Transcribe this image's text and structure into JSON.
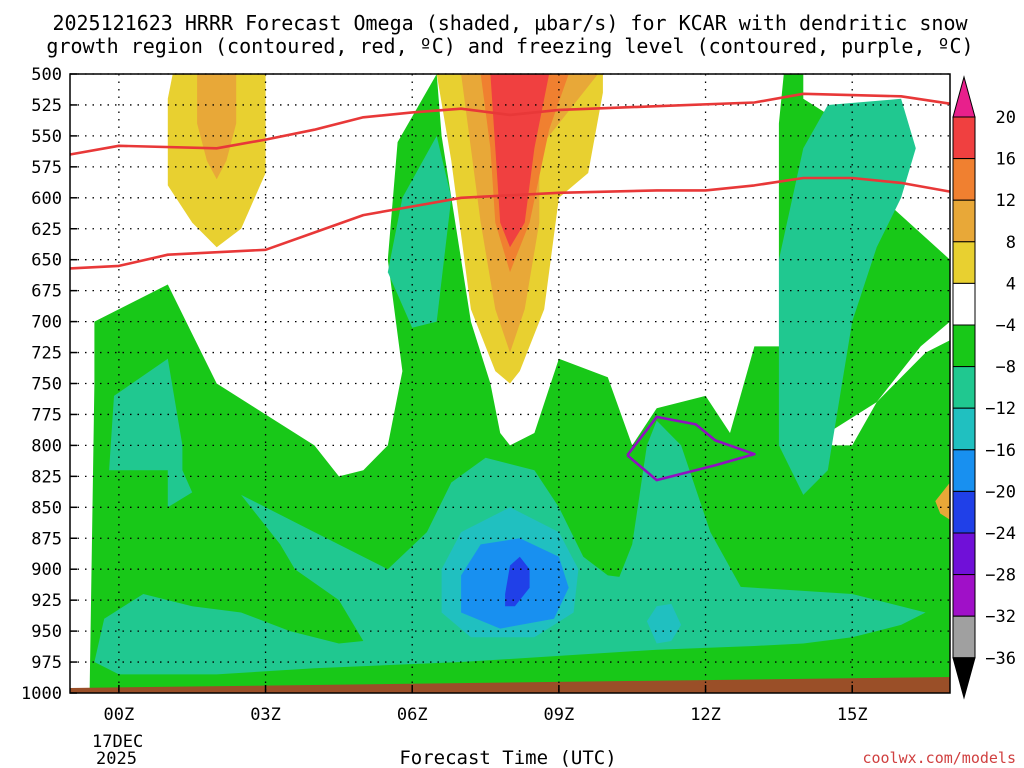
{
  "chart_data": {
    "type": "heatmap",
    "title_line1": "2025121623 HRRR Forecast Omega (shaded, μbar/s) for KCAR with dendritic snow",
    "title_line2": "growth region (contoured, red, ºC) and freezing level (contoured, purple, ºC)",
    "xlabel": "Forecast Time (UTC)",
    "ylabel": "",
    "credit": "coolwx.com/models",
    "x_ticks": [
      "00Z",
      "03Z",
      "06Z",
      "09Z",
      "12Z",
      "15Z"
    ],
    "x_tick_hours": [
      0,
      3,
      6,
      9,
      12,
      15
    ],
    "x_date_line1": "17DEC",
    "x_date_line2": "2025",
    "x_range_hours": [
      -1,
      17
    ],
    "y_ticks": [
      500,
      525,
      550,
      575,
      600,
      625,
      650,
      675,
      700,
      725,
      750,
      775,
      800,
      825,
      850,
      875,
      900,
      925,
      950,
      975,
      1000
    ],
    "y_range_hPa": [
      500,
      1000
    ],
    "colorbar": {
      "labels": [
        "20",
        "16",
        "12",
        "8",
        "4",
        "−4",
        "−8",
        "−12",
        "−16",
        "−20",
        "−24",
        "−28",
        "−32",
        "−36"
      ],
      "levels": [
        20,
        16,
        12,
        8,
        4,
        -4,
        -8,
        -12,
        -16,
        -20,
        -24,
        -28,
        -32,
        -36
      ],
      "colors": [
        "#f04040",
        "#f08030",
        "#e8a838",
        "#e8d030",
        "#ffffff",
        "#18c818",
        "#20c890",
        "#20c0c0",
        "#1890f0",
        "#2040e8",
        "#7010d8",
        "#a010c8",
        "#a0a0a0"
      ],
      "top_arrow_color": "#e8208c",
      "bottom_arrow_color": "#000000"
    },
    "dgz_top_hPa": [
      [
        -1,
        565
      ],
      [
        0,
        558
      ],
      [
        2,
        560
      ],
      [
        3,
        553
      ],
      [
        4,
        545
      ],
      [
        5,
        535
      ],
      [
        6,
        531
      ],
      [
        7,
        528
      ],
      [
        8,
        533
      ],
      [
        9,
        529
      ],
      [
        11,
        526
      ],
      [
        13,
        523
      ],
      [
        14,
        516
      ],
      [
        16,
        518
      ],
      [
        17,
        524
      ]
    ],
    "dgz_bottom_hPa": [
      [
        -1,
        657
      ],
      [
        0,
        655
      ],
      [
        1,
        646
      ],
      [
        3,
        642
      ],
      [
        4,
        628
      ],
      [
        5,
        614
      ],
      [
        6,
        607
      ],
      [
        7,
        600
      ],
      [
        8,
        598
      ],
      [
        9,
        596
      ],
      [
        11,
        594
      ],
      [
        12,
        594
      ],
      [
        13,
        590
      ],
      [
        14,
        584
      ],
      [
        15,
        584
      ],
      [
        16,
        588
      ],
      [
        17,
        595
      ]
    ],
    "freezing_level_hPa": [
      [
        10.4,
        808
      ],
      [
        11,
        777
      ],
      [
        11.8,
        783
      ],
      [
        12.2,
        796
      ],
      [
        13,
        807
      ],
      [
        12.2,
        816
      ],
      [
        11,
        828
      ],
      [
        10.4,
        808
      ]
    ],
    "omega_max_ubar_s": 20,
    "omega_min_ubar_s": -24
  }
}
